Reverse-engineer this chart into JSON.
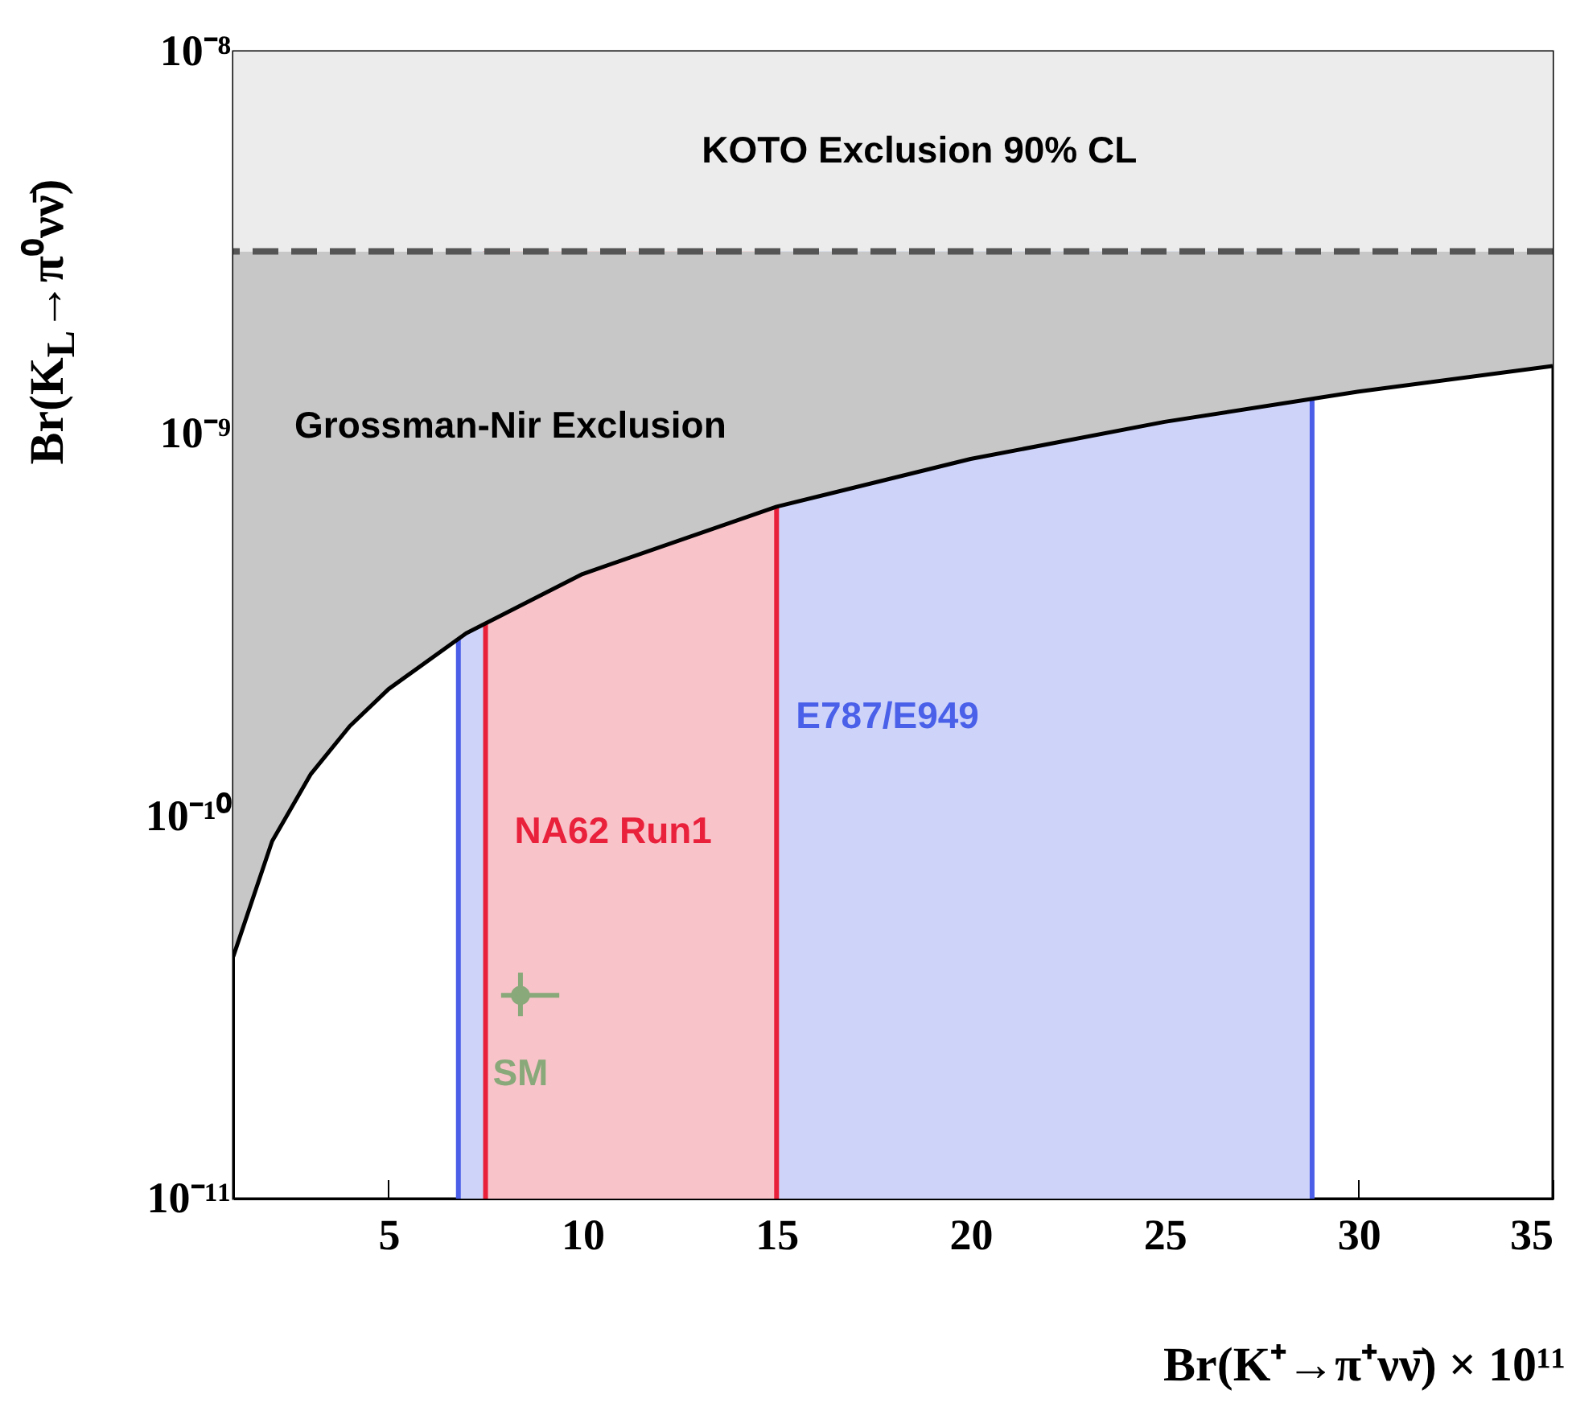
{
  "chart_data": {
    "type": "line",
    "xlabel": "Br(K⁺→π⁺νν̄) × 10¹¹",
    "ylabel": "Br(K$_{L}$→π⁰νν̄)",
    "log": "y",
    "xlim": [
      1,
      35
    ],
    "ylim": [
      1e-11,
      1e-08
    ],
    "xticks": [
      5,
      10,
      15,
      20,
      25,
      30,
      35
    ],
    "yticks": [
      {
        "value": 1e-11,
        "label": "10⁻¹¹"
      },
      {
        "value": 1e-10,
        "label": "10⁻¹⁰"
      },
      {
        "value": 1e-09,
        "label": "10⁻⁹"
      },
      {
        "value": 1e-08,
        "label": "10⁻⁸"
      }
    ],
    "legend": false,
    "series": [
      {
        "name": "Grossman-Nir Exclusion",
        "type": "line",
        "color": "#000000",
        "x": [
          1,
          2,
          3,
          4,
          5,
          7,
          10,
          15,
          20,
          25,
          30,
          35
        ],
        "values": [
          4.3e-11,
          8.6e-11,
          1.29e-10,
          1.72e-10,
          2.15e-10,
          3.01e-10,
          4.3e-10,
          6.45e-10,
          8.6e-10,
          1.075e-09,
          1.29e-09,
          1.505e-09
        ],
        "lower": [
          4.3e-11,
          8.6e-11,
          1.29e-10,
          1.72e-10,
          2.15e-10,
          3.01e-10,
          4.3e-10,
          6.45e-10,
          8.6e-10,
          1.075e-09,
          1.29e-09,
          1.505e-09
        ],
        "upper": [
          3e-09,
          3e-09,
          3e-09,
          3e-09,
          3e-09,
          3e-09,
          3e-09,
          3e-09,
          3e-09,
          3e-09,
          3e-09,
          3e-09
        ]
      },
      {
        "name": "SM",
        "type": "scatter",
        "color": "#8aa97a",
        "x": [
          8.4
        ],
        "values": [
          3.4e-11
        ],
        "marker": "circle",
        "errors": [
          [
            3e-11,
            3.9e-11
          ]
        ],
        "xerrors": [
          [
            7.9,
            9.4
          ]
        ]
      }
    ],
    "bands": [
      {
        "axis": "x",
        "from": 6.8,
        "to": 28.8,
        "label": "E787/E949",
        "color": "#ced4f9"
      },
      {
        "axis": "x",
        "from": 7.5,
        "to": 15,
        "label": "NA62 Run1",
        "color": "#f9c3ca"
      },
      {
        "axis": "y",
        "from": 3e-09,
        "to": 1e-08,
        "label": "KOTO Exclusion 90% CL",
        "color": "#ececec"
      }
    ],
    "ref_lines": [
      {
        "axis": "y",
        "value": 3e-09,
        "line_style": "dashed",
        "color": "#555555"
      },
      {
        "axis": "x",
        "value": 6.8,
        "color": "#4a5ee8"
      },
      {
        "axis": "x",
        "value": 28.8,
        "color": "#4a5ee8"
      },
      {
        "axis": "x",
        "value": 7.5,
        "color": "#e8203a"
      },
      {
        "axis": "x",
        "value": 15,
        "color": "#e8203a"
      }
    ]
  }
}
